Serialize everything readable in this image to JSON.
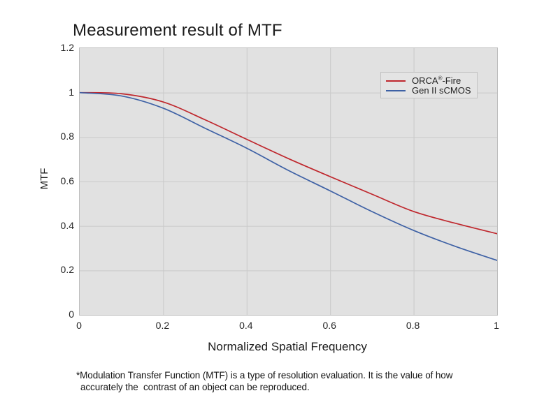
{
  "page": {
    "background": "#ffffff"
  },
  "chart_data": {
    "type": "line",
    "title": "Measurement result of MTF",
    "xlabel": "Normalized Spatial Frequency",
    "ylabel": "MTF",
    "xlim": [
      0,
      1
    ],
    "ylim": [
      0,
      1.2
    ],
    "grid": true,
    "plot_background": "#e1e1e1",
    "gridline_color": "#c9c9c9",
    "border_color": "#bdbdbd",
    "legend_position": "top-right",
    "xticks": {
      "values": [
        0,
        0.2,
        0.4,
        0.6,
        0.8,
        1
      ],
      "labels": [
        "0",
        "0.2",
        "0.4",
        "0.6",
        "0.8",
        "1"
      ]
    },
    "yticks": {
      "values": [
        1.2,
        1,
        0.8,
        0.6,
        0.4,
        0.2,
        0
      ],
      "labels": [
        "1.2",
        "1",
        "0.8",
        "0.6",
        "0.4",
        "0.2",
        "0"
      ]
    },
    "x": [
      0,
      0.1,
      0.2,
      0.3,
      0.4,
      0.5,
      0.6,
      0.7,
      0.8,
      0.9,
      1.0
    ],
    "series": [
      {
        "name": "ORCA®-Fire",
        "color": "#bf272d",
        "values": [
          1.0,
          0.995,
          0.958,
          0.878,
          0.79,
          0.703,
          0.622,
          0.543,
          0.465,
          0.412,
          0.365
        ]
      },
      {
        "name": "Gen II sCMOS",
        "color": "#3e61a5",
        "values": [
          1.0,
          0.985,
          0.93,
          0.84,
          0.75,
          0.65,
          0.558,
          0.465,
          0.38,
          0.308,
          0.245
        ]
      }
    ]
  },
  "legend": {
    "items": [
      {
        "pre": "ORCA",
        "sup": "®",
        "post": "-Fire"
      },
      {
        "pre": "Gen II sCMOS",
        "sup": "",
        "post": ""
      }
    ]
  },
  "footnote": {
    "lines": [
      "*Modulation Transfer Function (MTF) is a type of resolution evaluation. It is the value of how",
      "accurately the  contrast of an object can be reproduced."
    ]
  }
}
